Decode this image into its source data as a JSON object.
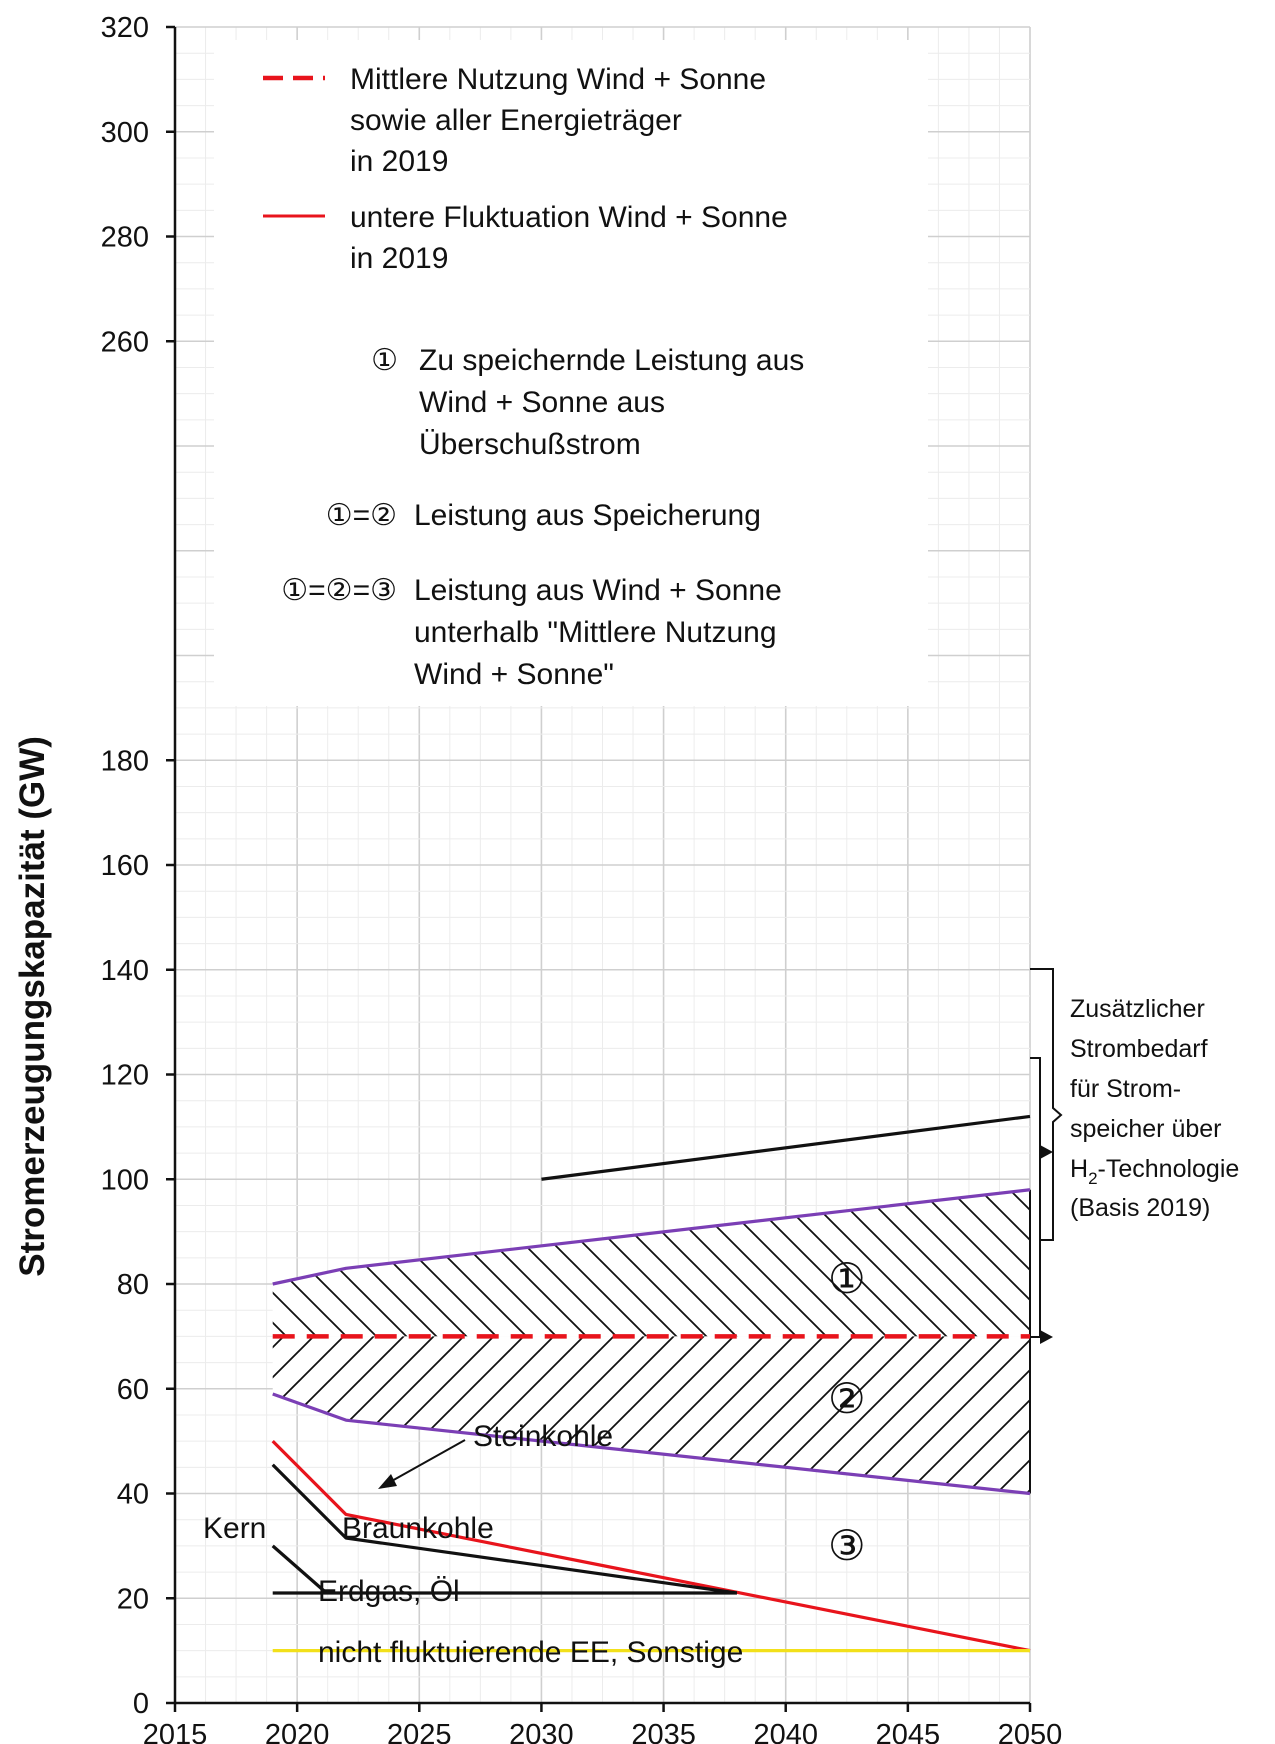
{
  "chart_data": {
    "type": "line",
    "xlim": [
      2015,
      2050
    ],
    "ylim": [
      0,
      320
    ],
    "x_ticks": [
      "2015",
      "2020",
      "2025",
      "2030",
      "2035",
      "2040",
      "2045",
      "2050"
    ],
    "y_ticks": [
      "0",
      "20",
      "40",
      "60",
      "80",
      "100",
      "120",
      "140",
      "160",
      "180",
      "260",
      "280",
      "300",
      "320"
    ],
    "ylabel": "Stromerzeugungskapazität (GW)",
    "grid": true,
    "legend_placement": "top-left",
    "legend": [
      {
        "style": "dashed",
        "color": "#e8141c",
        "lines": [
          "Mittlere Nutzung Wind + Sonne",
          "sowie aller Energieträger",
          "in 2019"
        ]
      },
      {
        "style": "solid",
        "color": "#e8141c",
        "lines": [
          "untere Fluktuation Wind + Sonne",
          "in 2019"
        ]
      }
    ],
    "series": [
      {
        "name": "Mittlere Nutzung Wind + Sonne sowie aller Energieträger in 2019",
        "color": "#e8141c",
        "style": "dashed",
        "points": [
          [
            2019,
            70
          ],
          [
            2050,
            70
          ]
        ]
      },
      {
        "name": "untere Fluktuation Wind + Sonne in 2019",
        "color": "#e8141c",
        "style": "solid",
        "points": [
          [
            2019,
            50
          ],
          [
            2022,
            36
          ],
          [
            2050,
            10
          ]
        ]
      },
      {
        "color": "#7b3fb5",
        "style": "solid",
        "points": [
          [
            2019,
            80
          ],
          [
            2022,
            83
          ],
          [
            2050,
            98
          ]
        ]
      },
      {
        "color": "#7b3fb5",
        "style": "solid",
        "points": [
          [
            2019,
            59
          ],
          [
            2022,
            54
          ],
          [
            2050,
            40
          ]
        ]
      },
      {
        "color": "#111111",
        "style": "solid",
        "points": [
          [
            2030,
            100
          ],
          [
            2050,
            112
          ]
        ]
      },
      {
        "color": "#111111",
        "style": "solid",
        "points": [
          [
            2019,
            45.5
          ],
          [
            2022,
            31.5
          ],
          [
            2038,
            21
          ]
        ]
      },
      {
        "color": "#111111",
        "style": "solid",
        "points": [
          [
            2019,
            30
          ],
          [
            2021.2,
            21
          ]
        ]
      },
      {
        "color": "#111111",
        "style": "solid",
        "points": [
          [
            2019,
            21
          ],
          [
            2038,
            21
          ]
        ]
      },
      {
        "color": "#f2e01a",
        "style": "solid",
        "points": [
          [
            2019,
            10
          ],
          [
            2050,
            10
          ]
        ]
      }
    ],
    "regions": [
      {
        "label": "①",
        "hatch": "backslash",
        "from_y": 70,
        "x": 2042.5,
        "y": 81
      },
      {
        "label": "②",
        "hatch": "slash",
        "to_y": 70,
        "x": 2042.5,
        "y": 58
      },
      {
        "label": "③",
        "x": 2042.5,
        "y": 30
      }
    ],
    "area_labels": {
      "steinkohle": "Steinkohle",
      "kern": "Kern",
      "braunkohle": "Braunkohle",
      "erdgas": "Erdgas, Öl",
      "nicht_fluktuierend": "nicht fluktuierende EE, Sonstige"
    },
    "notes": [
      {
        "symbol": "①",
        "lines": [
          "Zu speichernde Leistung aus",
          "Wind + Sonne aus",
          "Überschußstrom"
        ]
      },
      {
        "symbol": "①=②",
        "lines": [
          "Leistung aus Speicherung"
        ]
      },
      {
        "symbol": "①=②=③",
        "lines": [
          "Leistung aus Wind + Sonne",
          "unterhalb \"Mittlere Nutzung",
          "Wind + Sonne\""
        ]
      }
    ],
    "side_note": {
      "lines": [
        "Zusätzlicher",
        "Strombedarf",
        "für Strom-",
        "speicher über"
      ],
      "h2_prefix": "H",
      "h2_sub": "2",
      "h2_suffix": "-Technologie",
      "basis": "(Basis 2019)"
    }
  }
}
